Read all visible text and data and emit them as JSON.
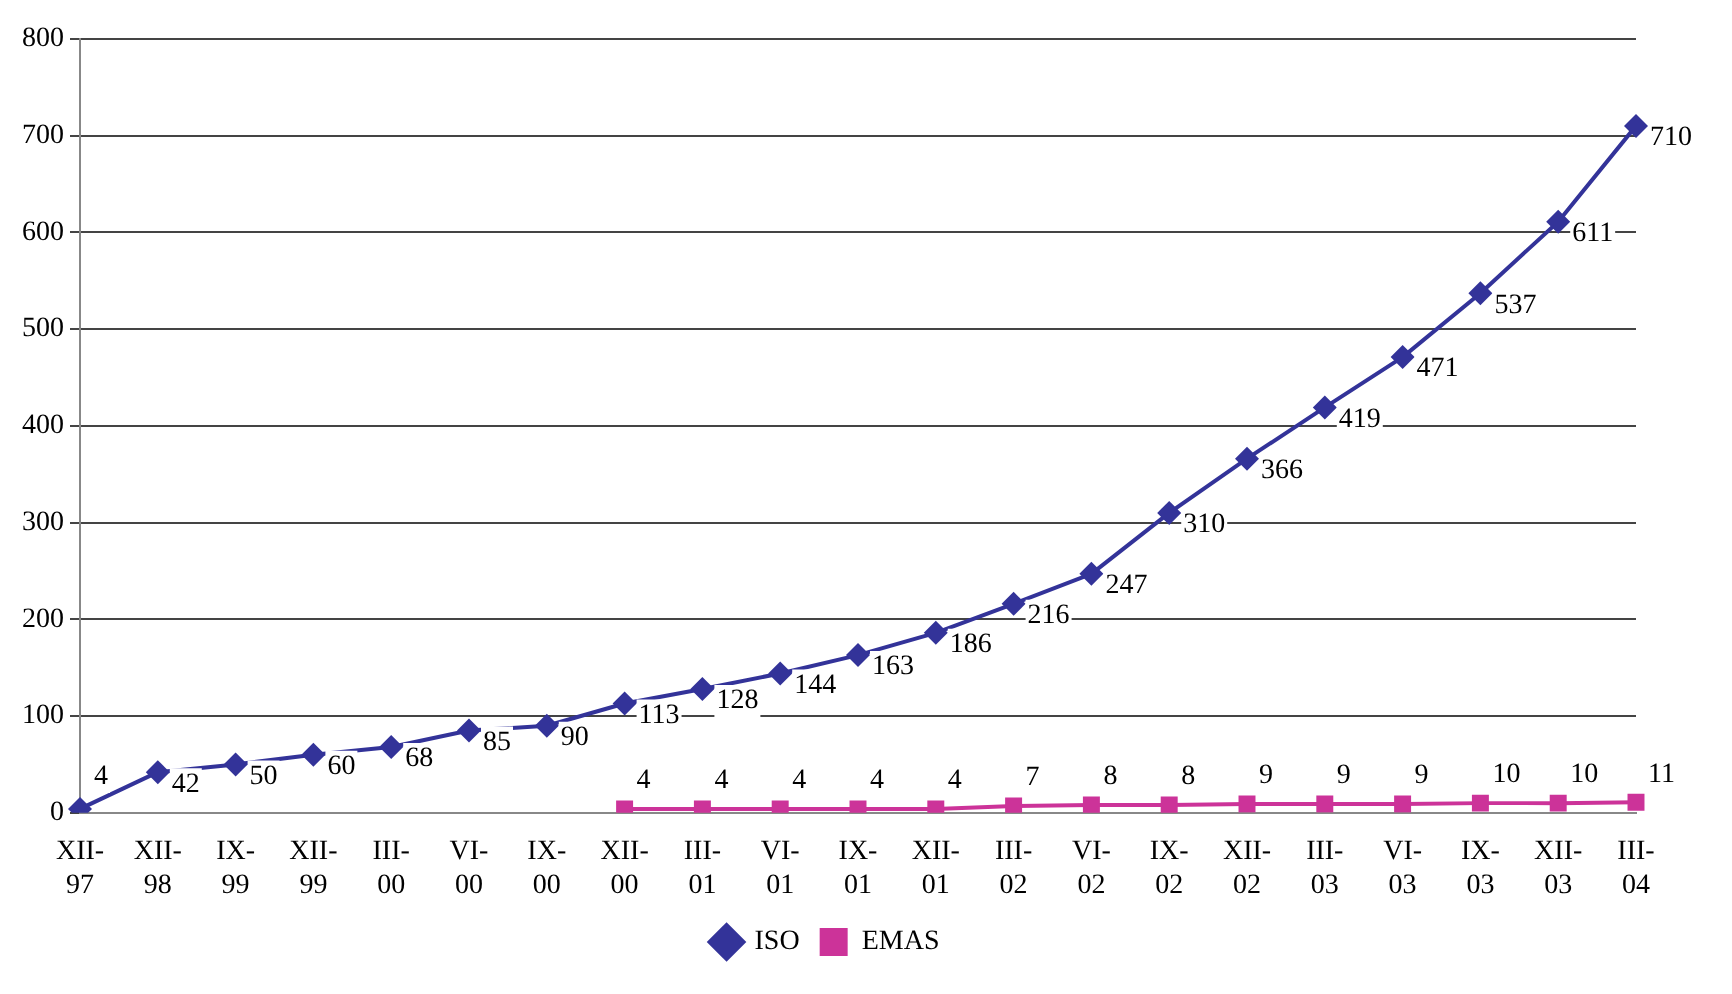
{
  "chart_data": {
    "type": "line",
    "categories": [
      "XII-97",
      "XII-98",
      "IX-99",
      "XII-99",
      "III-00",
      "VI-00",
      "IX-00",
      "XII-00",
      "III-01",
      "VI-01",
      "IX-01",
      "XII-01",
      "III-02",
      "VI-02",
      "IX-02",
      "XII-02",
      "III-03",
      "VI-03",
      "IX-03",
      "XII-03",
      "III-04"
    ],
    "series": [
      {
        "name": "ISO",
        "color": "#333399",
        "marker": "diamond",
        "values": [
          4,
          42,
          50,
          60,
          68,
          85,
          90,
          113,
          128,
          144,
          163,
          186,
          216,
          247,
          310,
          366,
          419,
          471,
          537,
          611,
          710
        ]
      },
      {
        "name": "EMAS",
        "color": "#cc3399",
        "marker": "square",
        "values": [
          null,
          null,
          null,
          null,
          null,
          null,
          null,
          4,
          4,
          4,
          4,
          4,
          7,
          8,
          8,
          9,
          9,
          9,
          10,
          10,
          11
        ]
      }
    ],
    "ylim": [
      0,
      800
    ],
    "yticks": [
      0,
      100,
      200,
      300,
      400,
      500,
      600,
      700,
      800
    ],
    "grid": "y",
    "legend": "bottom",
    "data_labels": true,
    "line_style": "solid"
  }
}
